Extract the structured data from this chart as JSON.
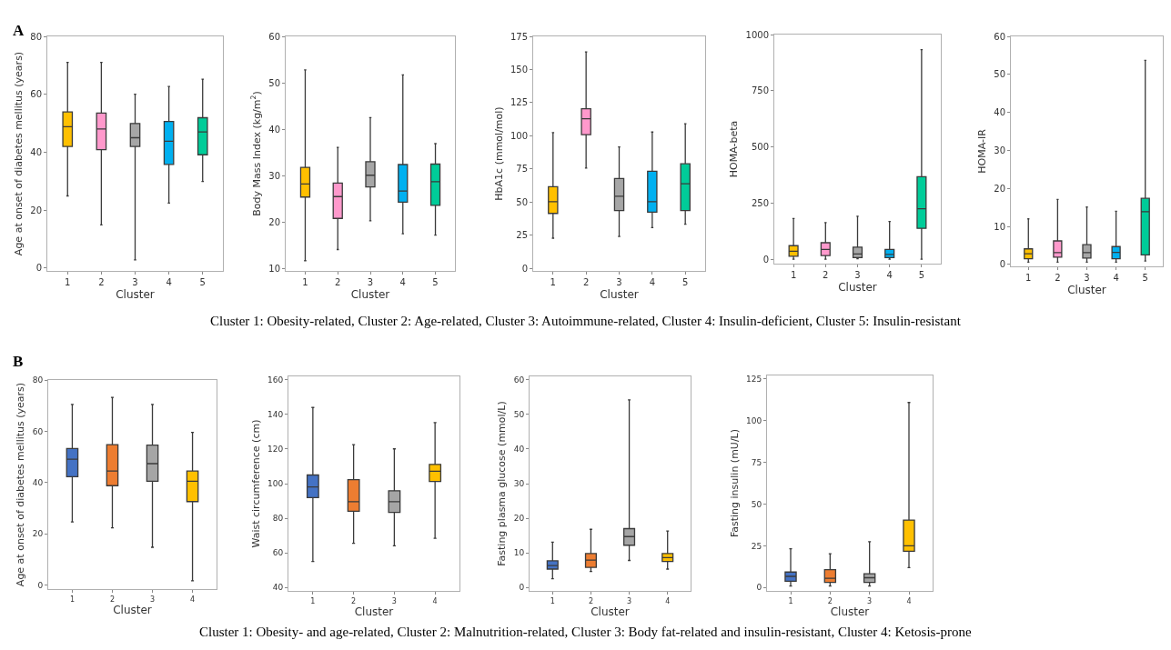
{
  "chart_data": [
    {
      "type": "box",
      "xlabel": "Cluster",
      "ylabel": "Age at onset of diabetes mellitus (years)",
      "categories": [
        "1",
        "2",
        "3",
        "4",
        "5"
      ],
      "colors": [
        "#ffc000",
        "#ff99cc",
        "#a6a6a6",
        "#00b0f0",
        "#00cc99"
      ],
      "ylim": [
        -1,
        80
      ],
      "yticks": [
        0,
        20,
        40,
        60,
        80
      ],
      "grid": false,
      "annotations": [
        "A",
        "Cluster 1: Obesity-related, Cluster 2: Age-related, Cluster 3: Autoimmune-related, Cluster 4: Insulin-deficient, Cluster 5: Insulin-resistant"
      ],
      "boxes": [
        {
          "low": 24.9,
          "q1": 42,
          "median": 48.8,
          "q3": 53.9,
          "high": 71
        },
        {
          "low": 14.9,
          "q1": 40.9,
          "median": 48,
          "q3": 53.5,
          "high": 71
        },
        {
          "low": 2.8,
          "q1": 42,
          "median": 45,
          "q3": 49.9,
          "high": 60
        },
        {
          "low": 22.4,
          "q1": 35.8,
          "median": 43.8,
          "q3": 50.6,
          "high": 62.7
        },
        {
          "low": 29.9,
          "q1": 39.1,
          "median": 47,
          "q3": 51.9,
          "high": 65.2
        }
      ]
    },
    {
      "type": "box",
      "xlabel": "Cluster",
      "ylabel": "Body Mass Index (kg/m$^{2}$)",
      "categories": [
        "1",
        "2",
        "3",
        "4",
        "5"
      ],
      "colors": [
        "#ffc000",
        "#ff99cc",
        "#a6a6a6",
        "#00b0f0",
        "#00cc99"
      ],
      "ylim": [
        9.5,
        60
      ],
      "yticks": [
        10,
        20,
        30,
        40,
        50,
        60
      ],
      "grid": false,
      "boxes": [
        {
          "low": 11.7,
          "q1": 25.4,
          "median": 28.2,
          "q3": 31.8,
          "high": 52.8
        },
        {
          "low": 14.1,
          "q1": 20.8,
          "median": 25.5,
          "q3": 28.4,
          "high": 36.1
        },
        {
          "low": 20.3,
          "q1": 27.6,
          "median": 30.1,
          "q3": 33,
          "high": 42.5
        },
        {
          "low": 17.5,
          "q1": 24.3,
          "median": 26.7,
          "q3": 32.4,
          "high": 51.7
        },
        {
          "low": 17.2,
          "q1": 23.6,
          "median": 28.7,
          "q3": 32.5,
          "high": 36.9
        }
      ]
    },
    {
      "type": "box",
      "xlabel": "Cluster",
      "ylabel": "HbA1c (mmol/mol)",
      "categories": [
        "1",
        "2",
        "3",
        "4",
        "5"
      ],
      "colors": [
        "#ffc000",
        "#ff99cc",
        "#a6a6a6",
        "#00b0f0",
        "#00cc99"
      ],
      "ylim": [
        -2,
        175
      ],
      "yticks": [
        0,
        25,
        50,
        75,
        100,
        125,
        150,
        175
      ],
      "grid": false,
      "boxes": [
        {
          "low": 22.7,
          "q1": 41.4,
          "median": 50.2,
          "q3": 61.5,
          "high": 102.4
        },
        {
          "low": 75.6,
          "q1": 100.8,
          "median": 112.8,
          "q3": 120.4,
          "high": 163.2
        },
        {
          "low": 24,
          "q1": 43.5,
          "median": 54.3,
          "q3": 67.7,
          "high": 91.5
        },
        {
          "low": 30.7,
          "q1": 42.3,
          "median": 50.2,
          "q3": 73.2,
          "high": 102.8
        },
        {
          "low": 33.3,
          "q1": 43.5,
          "median": 63.8,
          "q3": 78.8,
          "high": 109.1
        }
      ]
    },
    {
      "type": "box",
      "xlabel": "Cluster",
      "ylabel": "HOMA-beta",
      "categories": [
        "1",
        "2",
        "3",
        "4",
        "5"
      ],
      "colors": [
        "#ffc000",
        "#ff99cc",
        "#a6a6a6",
        "#00b0f0",
        "#00cc99"
      ],
      "ylim": [
        -20,
        1000
      ],
      "yticks": [
        0,
        250,
        500,
        750,
        1000
      ],
      "grid": false,
      "boxes": [
        {
          "low": 0,
          "q1": 13,
          "median": 35,
          "q3": 60,
          "high": 181
        },
        {
          "low": 0,
          "q1": 16,
          "median": 43,
          "q3": 73,
          "high": 163
        },
        {
          "low": 2,
          "q1": 7,
          "median": 23,
          "q3": 53,
          "high": 191
        },
        {
          "low": 0,
          "q1": 7,
          "median": 21,
          "q3": 43,
          "high": 168
        },
        {
          "low": 0,
          "q1": 137,
          "median": 224,
          "q3": 367,
          "high": 933
        }
      ]
    },
    {
      "type": "box",
      "xlabel": "Cluster",
      "ylabel": "HOMA-IR",
      "categories": [
        "1",
        "2",
        "3",
        "4",
        "5"
      ],
      "colors": [
        "#ffc000",
        "#ff99cc",
        "#a6a6a6",
        "#00b0f0",
        "#00cc99"
      ],
      "ylim": [
        -0.5,
        60
      ],
      "yticks": [
        0,
        10,
        20,
        30,
        40,
        50,
        60
      ],
      "grid": false,
      "boxes": [
        {
          "low": 0.6,
          "q1": 1.5,
          "median": 2.8,
          "q3": 4.1,
          "high": 12
        },
        {
          "low": 0.6,
          "q1": 1.9,
          "median": 3.1,
          "q3": 6.2,
          "high": 17.1
        },
        {
          "low": 0.6,
          "q1": 1.7,
          "median": 3.1,
          "q3": 5.2,
          "high": 15.1
        },
        {
          "low": 0.6,
          "q1": 1.5,
          "median": 3.2,
          "q3": 4.7,
          "high": 14
        },
        {
          "low": 0.9,
          "q1": 2.5,
          "median": 13.9,
          "q3": 17.4,
          "high": 53.7
        }
      ]
    },
    {
      "type": "box",
      "xlabel": "Cluster",
      "ylabel": "Age at onset of diabetes mellitus (years)",
      "categories": [
        "1",
        "2",
        "3",
        "4"
      ],
      "colors": [
        "#4472c4",
        "#ed7d31",
        "#a5a5a5",
        "#ffc000"
      ],
      "ylim": [
        -1.5,
        80
      ],
      "yticks": [
        0,
        20,
        40,
        60,
        80
      ],
      "grid": false,
      "annotations": [
        "B",
        "Cluster 1: Obesity- and age-related, Cluster 2: Malnutrition-related, Cluster 3: Body fat-related and insulin-resistant, Cluster 4: Ketosis-prone"
      ],
      "boxes": [
        {
          "low": 24.7,
          "q1": 42.3,
          "median": 49.1,
          "q3": 53.3,
          "high": 70.5
        },
        {
          "low": 22.4,
          "q1": 38.8,
          "median": 44.5,
          "q3": 54.8,
          "high": 73.2
        },
        {
          "low": 14.8,
          "q1": 40.5,
          "median": 47.4,
          "q3": 54.6,
          "high": 70.5
        },
        {
          "low": 1.7,
          "q1": 32.6,
          "median": 40.5,
          "q3": 44.5,
          "high": 59.6
        }
      ]
    },
    {
      "type": "box",
      "xlabel": "Cluster",
      "ylabel": "Waist circumference (cm)",
      "categories": [
        "1",
        "2",
        "3",
        "4"
      ],
      "colors": [
        "#4472c4",
        "#ed7d31",
        "#a5a5a5",
        "#ffc000"
      ],
      "ylim": [
        38,
        162
      ],
      "yticks": [
        40,
        60,
        80,
        100,
        120,
        140,
        160
      ],
      "grid": false,
      "boxes": [
        {
          "low": 55,
          "q1": 91.9,
          "median": 98.1,
          "q3": 105,
          "high": 144
        },
        {
          "low": 65.5,
          "q1": 84,
          "median": 89.6,
          "q3": 102.3,
          "high": 122.5
        },
        {
          "low": 64.1,
          "q1": 83.4,
          "median": 89.6,
          "q3": 95.9,
          "high": 120.1
        },
        {
          "low": 68.4,
          "q1": 101.2,
          "median": 107.2,
          "q3": 111.1,
          "high": 135.3
        }
      ]
    },
    {
      "type": "box",
      "xlabel": "Cluster",
      "ylabel": "Fasting plasma glucose (mmol/L)",
      "categories": [
        "1",
        "2",
        "3",
        "4"
      ],
      "colors": [
        "#4472c4",
        "#ed7d31",
        "#a5a5a5",
        "#ffc000"
      ],
      "ylim": [
        -1,
        61
      ],
      "yticks": [
        0,
        10,
        20,
        30,
        40,
        50,
        60
      ],
      "grid": false,
      "boxes": [
        {
          "low": 2.5,
          "q1": 5.3,
          "median": 6.3,
          "q3": 7.7,
          "high": 13.1
        },
        {
          "low": 4.6,
          "q1": 5.8,
          "median": 7.9,
          "q3": 9.8,
          "high": 16.8
        },
        {
          "low": 7.8,
          "q1": 12.2,
          "median": 14.7,
          "q3": 17,
          "high": 54.2
        },
        {
          "low": 5.3,
          "q1": 7.5,
          "median": 8.6,
          "q3": 9.8,
          "high": 16.3
        }
      ]
    },
    {
      "type": "box",
      "xlabel": "Cluster",
      "ylabel": "Fasting insulin (mU/L)",
      "categories": [
        "1",
        "2",
        "3",
        "4"
      ],
      "colors": [
        "#4472c4",
        "#ed7d31",
        "#a5a5a5",
        "#ffc000"
      ],
      "ylim": [
        -2,
        127
      ],
      "yticks": [
        0,
        25,
        50,
        75,
        100,
        125
      ],
      "grid": false,
      "boxes": [
        {
          "low": 0.9,
          "q1": 3.8,
          "median": 6.7,
          "q3": 9.3,
          "high": 23.2
        },
        {
          "low": 0.9,
          "q1": 3.1,
          "median": 5.5,
          "q3": 10.7,
          "high": 20.3
        },
        {
          "low": 0.9,
          "q1": 3.1,
          "median": 5.9,
          "q3": 8.3,
          "high": 27.5
        },
        {
          "low": 11.9,
          "q1": 21.7,
          "median": 25,
          "q3": 40.4,
          "high": 110.8
        }
      ]
    }
  ]
}
